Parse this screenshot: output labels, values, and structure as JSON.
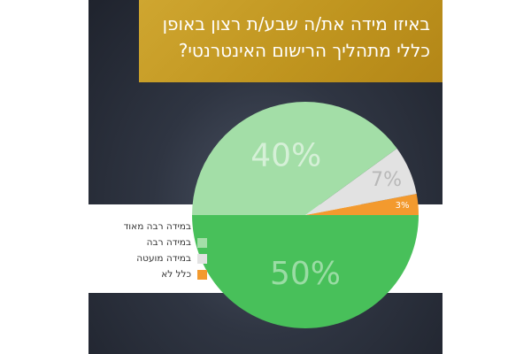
{
  "title": "באיזו מידה את/ה שבע/ת רצון באופן כללי מתהליך הרישום האינטרנטי?",
  "chart_data": {
    "type": "pie",
    "title": "באיזו מידה את/ה שבע/ת רצון באופן כללי מתהליך הרישום האינטרנטי?",
    "legend_position": "left",
    "slices": [
      {
        "label": "במידה רבה מאוד",
        "value": 50,
        "display": "50%",
        "color": "#48c05a"
      },
      {
        "label": "במידה רבה",
        "value": 40,
        "display": "40%",
        "color": "#a3dea7"
      },
      {
        "label": "במידה מועטה",
        "value": 7,
        "display": "7%",
        "color": "#e2e2e2"
      },
      {
        "label": "כלל לא",
        "value": 3,
        "display": "3%",
        "color": "#f39a2e"
      }
    ]
  }
}
